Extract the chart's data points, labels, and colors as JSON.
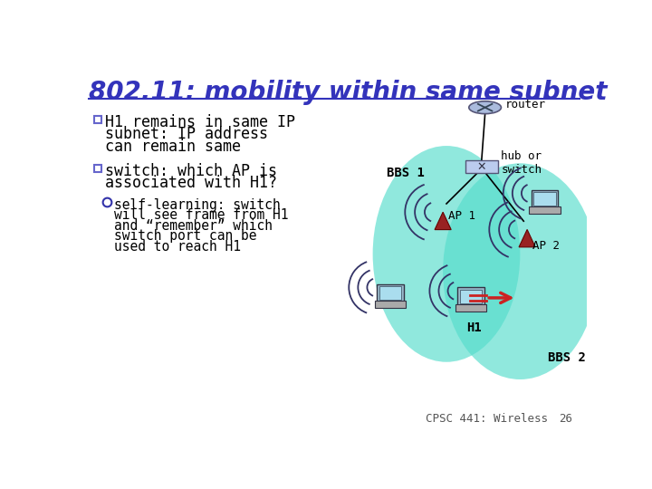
{
  "title": "802.11: mobility within same subnet",
  "title_color": "#3333bb",
  "title_fontsize": 20,
  "bg_color": "#ffffff",
  "text_color": "#000000",
  "bullet_color": "#000000",
  "bullet_box_color": "#6666cc",
  "teal_color": "#55ddcc",
  "teal_alpha": 0.65,
  "router_label": "router",
  "hub_label": "hub or\nswitch",
  "ap1_label": "AP 1",
  "ap2_label": "AP 2",
  "bbs1_label": "BBS 1",
  "bbs2_label": "BBS 2",
  "h1_label": "H1",
  "footer": "CPSC 441: Wireless",
  "footer_page": "26",
  "line1a": "H1 remains in same IP",
  "line1b": "subnet: IP address",
  "line1c": "can remain same",
  "line2a": "switch: which AP is",
  "line2b": "associated with H1?",
  "sub1": "self-learning: switch",
  "sub2": "will see frame from H1",
  "sub3": "and “remember” which",
  "sub4": "switch port can be",
  "sub5": "used to reach H1"
}
